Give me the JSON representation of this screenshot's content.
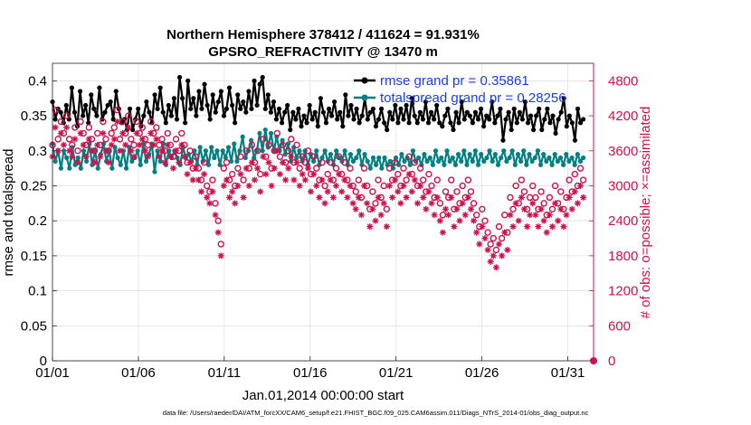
{
  "chart_data": {
    "type": "line",
    "title": "Northern Hemisphere 378412 / 411624 = 91.931%",
    "subtitle": "GPSRO_REFRACTIVITY @ 13470 m",
    "xlabel": "Jan.01,2014 00:00:00 start",
    "ylabel": "rmse and totalspread",
    "y2label": "# of obs: o=possible; ×=assimilated",
    "footnote": "data file: /Users/raeder/DAI/ATM_forcXX/CAM6_setup/f.e21.FHIST_BGC.f09_025.CAM6assim.011/Diags_NTrS_2014-01/obs_diag_output.nc",
    "x_ticks": [
      {
        "value": 1,
        "label": "01/01"
      },
      {
        "value": 6,
        "label": "01/06"
      },
      {
        "value": 11,
        "label": "01/11"
      },
      {
        "value": 16,
        "label": "01/16"
      },
      {
        "value": 21,
        "label": "01/21"
      },
      {
        "value": 26,
        "label": "01/26"
      },
      {
        "value": 31,
        "label": "01/31"
      }
    ],
    "y_ticks": [
      {
        "value": 0,
        "label": "0"
      },
      {
        "value": 0.05,
        "label": "0.05"
      },
      {
        "value": 0.1,
        "label": "0.1"
      },
      {
        "value": 0.15,
        "label": "0.15"
      },
      {
        "value": 0.2,
        "label": "0.2"
      },
      {
        "value": 0.25,
        "label": "0.25"
      },
      {
        "value": 0.3,
        "label": "0.3"
      },
      {
        "value": 0.35,
        "label": "0.35"
      },
      {
        "value": 0.4,
        "label": "0.4"
      }
    ],
    "y2_ticks": [
      {
        "value": 0,
        "label": "0"
      },
      {
        "value": 600,
        "label": "600"
      },
      {
        "value": 1200,
        "label": "1200"
      },
      {
        "value": 1800,
        "label": "1800"
      },
      {
        "value": 2400,
        "label": "2400"
      },
      {
        "value": 3000,
        "label": "3000"
      },
      {
        "value": 3600,
        "label": "3600"
      },
      {
        "value": 4200,
        "label": "4200"
      },
      {
        "value": 4800,
        "label": "4800"
      }
    ],
    "xlim": [
      1,
      32.5
    ],
    "ylim": [
      0,
      0.425
    ],
    "y2lim": [
      0,
      5100
    ],
    "grid": true,
    "legend_position": "top-right",
    "series": [
      {
        "name": "rmse grand pr = 0.35861",
        "axis": "left",
        "color": "#000000",
        "marker": "filled-circle-dot",
        "values": [
          0.37,
          0.345,
          0.36,
          0.355,
          0.34,
          0.365,
          0.345,
          0.39,
          0.355,
          0.335,
          0.385,
          0.35,
          0.365,
          0.34,
          0.38,
          0.36,
          0.35,
          0.39,
          0.345,
          0.355,
          0.365,
          0.37,
          0.345,
          0.385,
          0.36,
          0.34,
          0.345,
          0.33,
          0.36,
          0.33,
          0.345,
          0.36,
          0.335,
          0.35,
          0.37,
          0.355,
          0.34,
          0.38,
          0.36,
          0.39,
          0.355,
          0.34,
          0.365,
          0.35,
          0.375,
          0.345,
          0.405,
          0.375,
          0.34,
          0.4,
          0.36,
          0.375,
          0.35,
          0.385,
          0.36,
          0.395,
          0.365,
          0.345,
          0.38,
          0.355,
          0.37,
          0.385,
          0.35,
          0.36,
          0.39,
          0.365,
          0.34,
          0.38,
          0.36,
          0.37,
          0.355,
          0.385,
          0.36,
          0.4,
          0.365,
          0.395,
          0.405,
          0.36,
          0.38,
          0.355,
          0.37,
          0.345,
          0.36,
          0.34,
          0.355,
          0.365,
          0.33,
          0.355,
          0.345,
          0.36,
          0.335,
          0.35,
          0.34,
          0.365,
          0.345,
          0.355,
          0.335,
          0.375,
          0.355,
          0.34,
          0.36,
          0.35,
          0.37,
          0.345,
          0.355,
          0.335,
          0.38,
          0.35,
          0.365,
          0.345,
          0.36,
          0.34,
          0.35,
          0.375,
          0.345,
          0.355,
          0.36,
          0.335,
          0.345,
          0.36,
          0.34,
          0.33,
          0.355,
          0.345,
          0.365,
          0.34,
          0.36,
          0.345,
          0.365,
          0.34,
          0.375,
          0.35,
          0.34,
          0.355,
          0.345,
          0.37,
          0.34,
          0.355,
          0.345,
          0.365,
          0.34,
          0.335,
          0.35,
          0.36,
          0.34,
          0.33,
          0.355,
          0.34,
          0.37,
          0.345,
          0.355,
          0.35,
          0.34,
          0.355,
          0.345,
          0.36,
          0.335,
          0.35,
          0.345,
          0.37,
          0.34,
          0.35,
          0.36,
          0.315,
          0.345,
          0.355,
          0.33,
          0.36,
          0.34,
          0.355,
          0.345,
          0.37,
          0.34,
          0.35,
          0.33,
          0.35,
          0.36,
          0.33,
          0.345,
          0.36,
          0.34,
          0.35,
          0.325,
          0.345,
          0.355,
          0.375,
          0.335,
          0.35,
          0.34,
          0.315,
          0.36,
          0.34,
          0.345
        ]
      },
      {
        "name": "totalspread grand pr = 0.28256",
        "axis": "left",
        "color": "#008080",
        "marker": "filled-circle-dot",
        "values": [
          0.31,
          0.285,
          0.3,
          0.275,
          0.3,
          0.29,
          0.275,
          0.305,
          0.28,
          0.29,
          0.275,
          0.3,
          0.285,
          0.31,
          0.28,
          0.3,
          0.275,
          0.295,
          0.31,
          0.285,
          0.3,
          0.275,
          0.305,
          0.29,
          0.28,
          0.3,
          0.275,
          0.305,
          0.285,
          0.29,
          0.3,
          0.28,
          0.31,
          0.285,
          0.295,
          0.31,
          0.27,
          0.3,
          0.285,
          0.31,
          0.28,
          0.3,
          0.29,
          0.3,
          0.29,
          0.28,
          0.305,
          0.29,
          0.295,
          0.285,
          0.3,
          0.28,
          0.305,
          0.285,
          0.3,
          0.28,
          0.305,
          0.29,
          0.3,
          0.28,
          0.3,
          0.29,
          0.305,
          0.285,
          0.31,
          0.285,
          0.3,
          0.32,
          0.29,
          0.3,
          0.315,
          0.29,
          0.3,
          0.325,
          0.3,
          0.33,
          0.305,
          0.325,
          0.3,
          0.32,
          0.3,
          0.315,
          0.295,
          0.31,
          0.285,
          0.305,
          0.29,
          0.3,
          0.285,
          0.3,
          0.28,
          0.295,
          0.285,
          0.3,
          0.28,
          0.29,
          0.3,
          0.285,
          0.295,
          0.28,
          0.3,
          0.29,
          0.285,
          0.3,
          0.28,
          0.295,
          0.285,
          0.29,
          0.3,
          0.28,
          0.295,
          0.285,
          0.275,
          0.29,
          0.28,
          0.29,
          0.275,
          0.29,
          0.28,
          0.285,
          0.275,
          0.29,
          0.28,
          0.295,
          0.285,
          0.29,
          0.28,
          0.3,
          0.285,
          0.29,
          0.28,
          0.295,
          0.285,
          0.29,
          0.28,
          0.3,
          0.285,
          0.29,
          0.28,
          0.3,
          0.285,
          0.29,
          0.28,
          0.295,
          0.285,
          0.3,
          0.28,
          0.295,
          0.285,
          0.3,
          0.28,
          0.295,
          0.285,
          0.29,
          0.3,
          0.285,
          0.295,
          0.28,
          0.29,
          0.3,
          0.285,
          0.29,
          0.3,
          0.28,
          0.295,
          0.285,
          0.3,
          0.28,
          0.295,
          0.285,
          0.29,
          0.3,
          0.28,
          0.295,
          0.285,
          0.29,
          0.28,
          0.295,
          0.285,
          0.29,
          0.28,
          0.295,
          0.285,
          0.29,
          0.28,
          0.295,
          0.285,
          0.29
        ]
      },
      {
        "name": "possible",
        "axis": "right",
        "color": "#d0104c",
        "marker": "open-circle",
        "values": [
          3700,
          4300,
          3800,
          4100,
          3900,
          4200,
          3800,
          3700,
          4000,
          3600,
          4100,
          3900,
          3700,
          4000,
          3800,
          3600,
          3900,
          3700,
          4100,
          3800,
          3600,
          3900,
          4000,
          4300,
          3800,
          4100,
          3900,
          4200,
          3800,
          3700,
          4100,
          3900,
          4000,
          3800,
          3700,
          4100,
          3900,
          4000,
          3700,
          3800,
          3600,
          3900,
          3700,
          3500,
          3800,
          3600,
          3900,
          3700,
          3400,
          3600,
          3300,
          3500,
          3300,
          3100,
          3400,
          3000,
          2900,
          3100,
          2700,
          2400,
          2000,
          3300,
          3400,
          3100,
          3200,
          3000,
          3300,
          3500,
          3100,
          3600,
          3300,
          3700,
          3400,
          3600,
          3200,
          3800,
          3500,
          3700,
          3300,
          3600,
          3900,
          3500,
          3700,
          3400,
          3600,
          3800,
          3400,
          3700,
          3300,
          3500,
          3400,
          3600,
          3200,
          3500,
          3300,
          3100,
          3400,
          3000,
          3200,
          3400,
          3100,
          3300,
          3500,
          3200,
          3400,
          3100,
          3300,
          3000,
          2900,
          3100,
          2800,
          3300,
          3000,
          2600,
          2900,
          2700,
          3100,
          2800,
          3000,
          2600,
          3300,
          3100,
          3400,
          3200,
          3000,
          3300,
          3100,
          3500,
          3200,
          3400,
          3000,
          3300,
          3100,
          2900,
          3200,
          3000,
          2800,
          3100,
          2700,
          2500,
          2900,
          2800,
          3100,
          2600,
          2900,
          2700,
          3000,
          2800,
          3100,
          2900,
          2700,
          2500,
          2300,
          2600,
          2400,
          2200,
          2000,
          2100,
          1900,
          2300,
          2100,
          2500,
          2200,
          2800,
          2600,
          3000,
          2700,
          3100,
          2900,
          2600,
          2800,
          3000,
          2800,
          2600,
          2900,
          2700,
          2500,
          2800,
          2600,
          3000,
          2700,
          2900,
          2600,
          2800,
          3100,
          2900,
          3200,
          3000,
          3300,
          3100
        ]
      },
      {
        "name": "assimilated",
        "axis": "right",
        "color": "#d0104c",
        "marker": "asterisk",
        "values": [
          3500,
          4000,
          3600,
          3900,
          3700,
          4000,
          3600,
          3500,
          3800,
          3400,
          3900,
          3700,
          3500,
          3800,
          3600,
          3400,
          3700,
          3500,
          3900,
          3600,
          3400,
          3700,
          3800,
          4100,
          3600,
          3900,
          3700,
          4000,
          3600,
          3500,
          3900,
          3700,
          3800,
          3600,
          3500,
          3900,
          3700,
          3800,
          3500,
          3600,
          3400,
          3700,
          3500,
          3300,
          3600,
          3400,
          3700,
          3500,
          3200,
          3400,
          3100,
          3300,
          3100,
          2900,
          3200,
          2800,
          2700,
          2900,
          2500,
          2200,
          1800,
          3000,
          3100,
          2800,
          2900,
          2700,
          3000,
          3200,
          2800,
          3300,
          3000,
          3400,
          3100,
          3300,
          2900,
          3500,
          3200,
          3400,
          3000,
          3300,
          3600,
          3200,
          3400,
          3100,
          3300,
          3500,
          3100,
          3400,
          3000,
          3200,
          3100,
          3300,
          2900,
          3200,
          3000,
          2800,
          3100,
          2700,
          2900,
          3100,
          2800,
          3000,
          3200,
          2900,
          3100,
          2800,
          3000,
          2700,
          2600,
          2800,
          2500,
          3000,
          2700,
          2300,
          2600,
          2400,
          2800,
          2500,
          2700,
          2300,
          3000,
          2800,
          3100,
          2900,
          2700,
          3000,
          2800,
          3200,
          2900,
          3100,
          2700,
          3000,
          2800,
          2600,
          2900,
          2700,
          2500,
          2800,
          2400,
          2200,
          2600,
          2500,
          2800,
          2300,
          2600,
          2400,
          2700,
          2500,
          2800,
          2600,
          2400,
          2200,
          2000,
          2300,
          2100,
          1900,
          1700,
          1800,
          1600,
          2000,
          1800,
          2200,
          1900,
          2500,
          2300,
          2700,
          2400,
          2800,
          2600,
          2300,
          2500,
          2700,
          2500,
          2300,
          2600,
          2400,
          2200,
          2500,
          2300,
          2700,
          2400,
          2600,
          2300,
          2500,
          2800,
          2600,
          2900,
          2700,
          3000,
          2800
        ]
      }
    ]
  }
}
